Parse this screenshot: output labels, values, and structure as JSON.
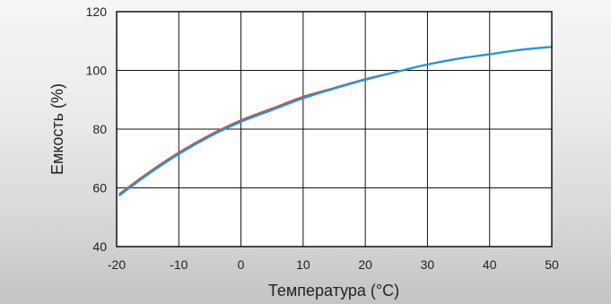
{
  "chart_data": {
    "type": "line",
    "xlabel": "Температура (°C)",
    "ylabel": "Емкость (%)",
    "xlim": [
      -20,
      50
    ],
    "ylim": [
      40,
      120
    ],
    "x_ticks": [
      "-20",
      "-10",
      "0",
      "10",
      "20",
      "30",
      "40",
      "50"
    ],
    "y_ticks": [
      "40",
      "60",
      "80",
      "100",
      "120"
    ],
    "grid": true,
    "series": [
      {
        "color": "#d9483b",
        "x": [
          -19.5,
          -15,
          -10,
          -5,
          0,
          5,
          10,
          15,
          20,
          25,
          30,
          35,
          40,
          45,
          50
        ],
        "y": [
          58,
          65,
          72,
          78,
          83,
          87,
          91,
          94,
          97,
          99.5,
          102,
          104,
          105.5,
          107,
          108
        ]
      },
      {
        "color": "#1e9ad6",
        "x": [
          -19.5,
          -15,
          -10,
          -5,
          0,
          5,
          10,
          15,
          20,
          25,
          30,
          35,
          40,
          45,
          50
        ],
        "y": [
          57.5,
          64.5,
          71.5,
          77.5,
          82.5,
          86.5,
          90.5,
          93.8,
          96.8,
          99.5,
          102,
          104,
          105.5,
          107,
          108
        ]
      }
    ]
  }
}
